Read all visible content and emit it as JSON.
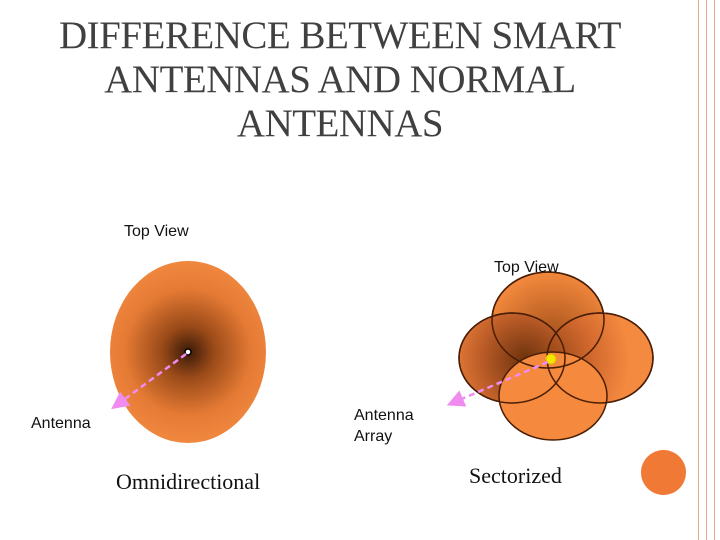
{
  "title": "DIFFERENCE BETWEEN SMART ANTENNAS AND NORMAL ANTENNAS",
  "left": {
    "top_view_label": "Top View",
    "antenna_label": "Antenna",
    "caption": "Omnidirectional"
  },
  "right": {
    "top_view_label": "Top View",
    "array_label_line1": "Antenna",
    "array_label_line2": "Array",
    "caption": "Sectorized"
  },
  "colors": {
    "beam_orange": "#f58a3e",
    "beam_dark": "#7a3a10",
    "arrow_pink": "#f08cf0",
    "accent_dot": "#f07a35",
    "border": "#e3a98c"
  }
}
